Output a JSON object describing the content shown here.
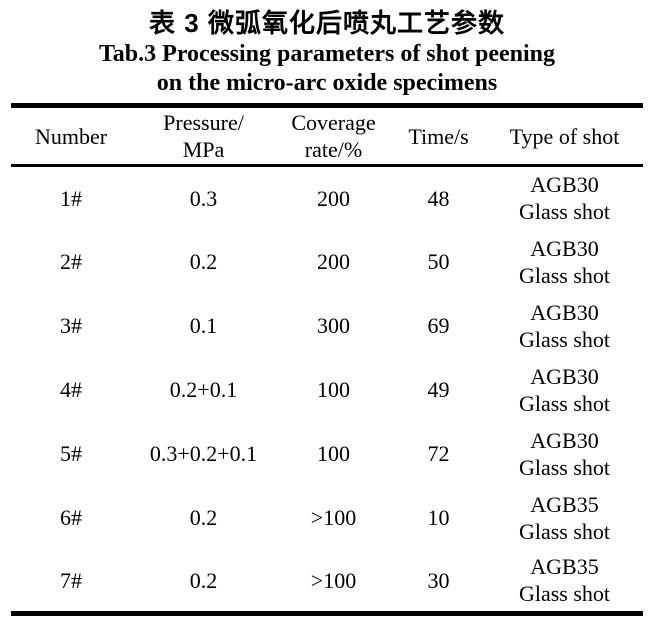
{
  "page": {
    "background": "#ffffff",
    "text_color": "#000000",
    "rule_color": "#000000"
  },
  "caption": {
    "zh": "表 3 微弧氧化后喷丸工艺参数",
    "en_line1": "Tab.3 Processing parameters of shot peening",
    "en_line2": "on the micro-arc oxide specimens"
  },
  "table": {
    "columns": [
      {
        "label_lines": [
          "Number"
        ]
      },
      {
        "label_lines": [
          "Pressure/",
          "MPa"
        ]
      },
      {
        "label_lines": [
          "Coverage",
          "rate/%"
        ]
      },
      {
        "label_lines": [
          "Time/s"
        ]
      },
      {
        "label_lines": [
          "Type of shot"
        ]
      }
    ],
    "rows": [
      {
        "number": "1#",
        "pressure": "0.3",
        "coverage": "200",
        "time": "48",
        "shot_lines": [
          "AGB30",
          "Glass shot"
        ]
      },
      {
        "number": "2#",
        "pressure": "0.2",
        "coverage": "200",
        "time": "50",
        "shot_lines": [
          "AGB30",
          "Glass shot"
        ]
      },
      {
        "number": "3#",
        "pressure": "0.1",
        "coverage": "300",
        "time": "69",
        "shot_lines": [
          "AGB30",
          "Glass shot"
        ]
      },
      {
        "number": "4#",
        "pressure": "0.2+0.1",
        "coverage": "100",
        "time": "49",
        "shot_lines": [
          "AGB30",
          "Glass shot"
        ]
      },
      {
        "number": "5#",
        "pressure": "0.3+0.2+0.1",
        "coverage": "100",
        "time": "72",
        "shot_lines": [
          "AGB30",
          "Glass shot"
        ]
      },
      {
        "number": "6#",
        "pressure": "0.2",
        "coverage": ">100",
        "time": "10",
        "shot_lines": [
          "AGB35",
          "Glass shot"
        ]
      },
      {
        "number": "7#",
        "pressure": "0.2",
        "coverage": ">100",
        "time": "30",
        "shot_lines": [
          "AGB35",
          "Glass shot"
        ]
      }
    ]
  }
}
